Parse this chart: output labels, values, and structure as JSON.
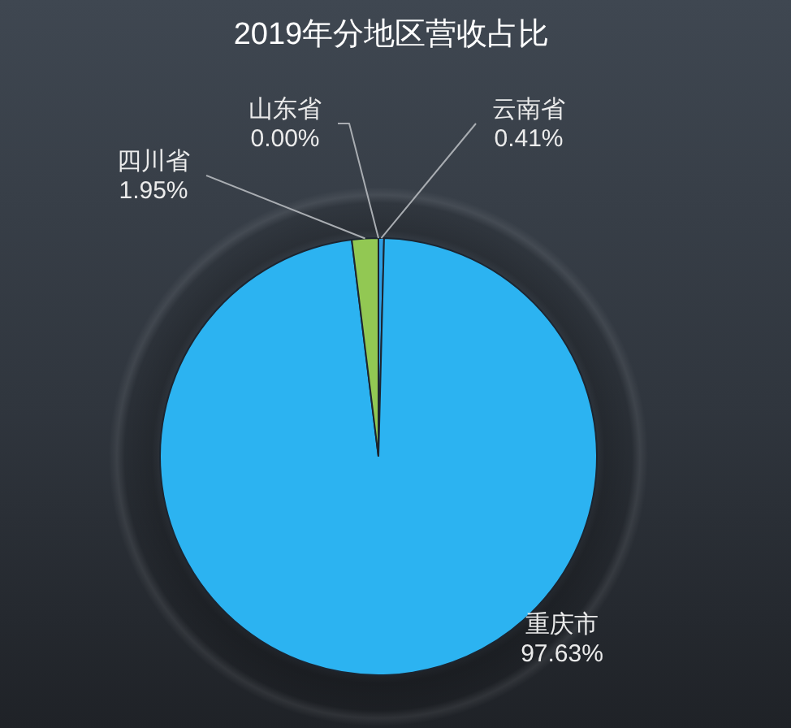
{
  "chart_data": {
    "type": "pie",
    "title": "2019年分地区营收占比",
    "categories": [
      "云南省",
      "重庆市",
      "四川省",
      "山东省"
    ],
    "values": [
      0.41,
      97.63,
      1.95,
      0
    ],
    "colors": [
      "#2e9fe3",
      "#2cb3f1",
      "#92c853",
      "#f2a93b"
    ],
    "value_labels": [
      "0.41%",
      "97.63%",
      "1.95%",
      "0.00%"
    ]
  }
}
